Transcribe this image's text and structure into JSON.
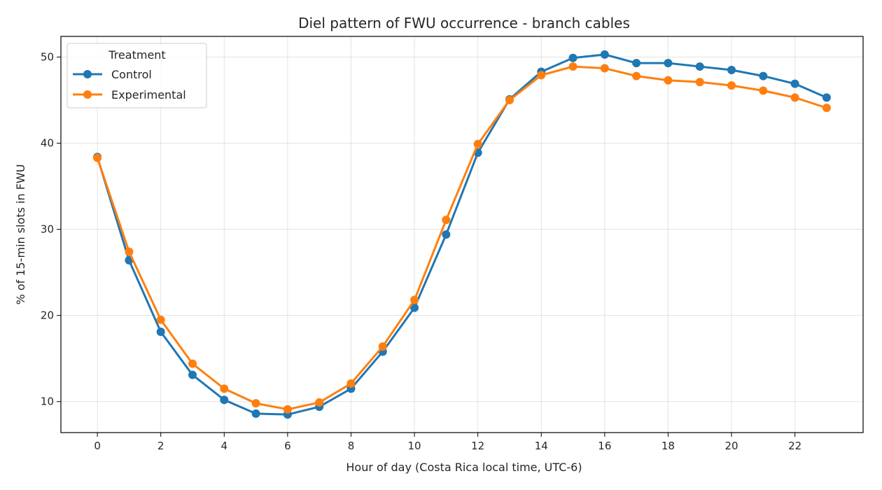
{
  "chart_data": {
    "type": "line",
    "title": "Diel pattern of FWU occurrence - branch cables",
    "xlabel": "Hour of day (Costa Rica local time, UTC-6)",
    "ylabel": "% of 15-min slots in FWU",
    "x": [
      0,
      1,
      2,
      3,
      4,
      5,
      6,
      7,
      8,
      9,
      10,
      11,
      12,
      13,
      14,
      15,
      16,
      17,
      18,
      19,
      20,
      21,
      22,
      23
    ],
    "xlim": [
      -1.15,
      24.15
    ],
    "ylim": [
      6.4,
      52.4
    ],
    "xticks": [
      0,
      2,
      4,
      6,
      8,
      10,
      12,
      14,
      16,
      18,
      20,
      22
    ],
    "yticks": [
      10,
      20,
      30,
      40,
      50
    ],
    "grid": true,
    "legend": {
      "title": "Treatment",
      "placement": "top-left"
    },
    "series": [
      {
        "name": "Control",
        "color": "#1f77b4",
        "values": [
          38.4,
          26.4,
          18.1,
          13.1,
          10.2,
          8.6,
          8.5,
          9.4,
          11.5,
          15.8,
          20.9,
          29.4,
          38.9,
          45.1,
          48.3,
          49.9,
          50.3,
          49.3,
          49.3,
          48.9,
          48.5,
          47.8,
          46.9,
          45.3
        ]
      },
      {
        "name": "Experimental",
        "color": "#ff7f0e",
        "values": [
          38.3,
          27.4,
          19.5,
          14.4,
          11.5,
          9.8,
          9.1,
          9.9,
          12.1,
          16.4,
          21.8,
          31.1,
          39.9,
          45.0,
          47.9,
          48.9,
          48.7,
          47.8,
          47.3,
          47.1,
          46.7,
          46.1,
          45.3,
          44.1
        ]
      }
    ]
  }
}
